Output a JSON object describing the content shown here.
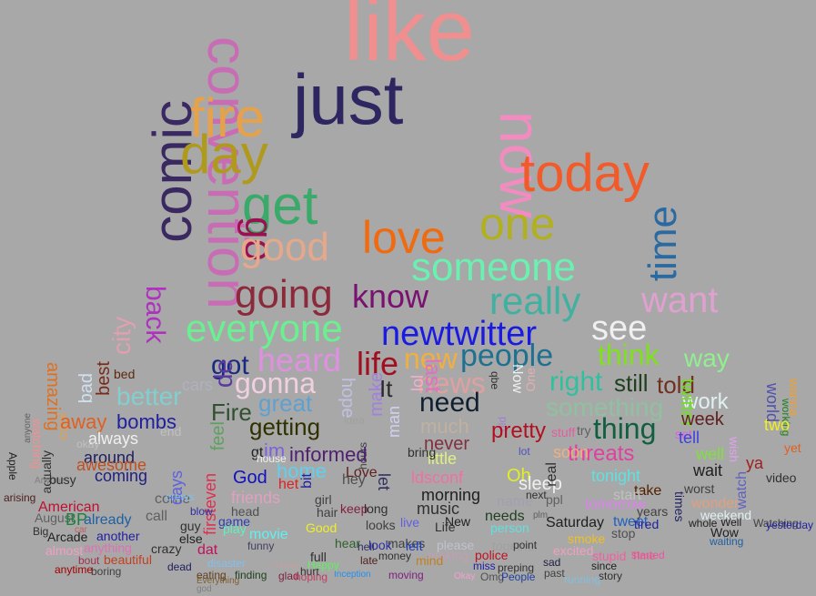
{
  "cloud": {
    "words": [
      {
        "text": "like",
        "color": "#f08f8f"
      },
      {
        "text": "just",
        "color": "#2e2660"
      },
      {
        "text": "convention",
        "color": "#c86db4"
      },
      {
        "text": "fire",
        "color": "#e6a24a"
      },
      {
        "text": "comic",
        "color": "#3a2860"
      },
      {
        "text": "day",
        "color": "#b09a1e"
      },
      {
        "text": "now",
        "color": "#f28cc0"
      },
      {
        "text": "today",
        "color": "#f25a2a"
      },
      {
        "text": "get",
        "color": "#3aaa6a"
      },
      {
        "text": "one",
        "color": "#b0b020"
      },
      {
        "text": "go",
        "color": "#9a1050"
      },
      {
        "text": "good",
        "color": "#e6a88a"
      },
      {
        "text": "love",
        "color": "#f06a10"
      },
      {
        "text": "time",
        "color": "#2a6aa0"
      },
      {
        "text": "someone",
        "color": "#6af0b0"
      },
      {
        "text": "back",
        "color": "#b030c0"
      },
      {
        "text": "going",
        "color": "#8a2a3a"
      },
      {
        "text": "know",
        "color": "#7a1070"
      },
      {
        "text": "really",
        "color": "#40b0a0"
      },
      {
        "text": "want",
        "color": "#e0a0d0"
      },
      {
        "text": "city",
        "color": "#e0a0b0"
      },
      {
        "text": "everyone",
        "color": "#6af090"
      },
      {
        "text": "newtwitter",
        "color": "#1a1ae0"
      },
      {
        "text": "see",
        "color": "#f0f0f0"
      },
      {
        "text": "got",
        "color": "#1a2a80"
      },
      {
        "text": "heard",
        "color": "#e090e0"
      },
      {
        "text": "life",
        "color": "#a01020"
      },
      {
        "text": "new",
        "color": "#f0b040"
      },
      {
        "text": "people",
        "color": "#207090"
      },
      {
        "text": "think",
        "color": "#80e020"
      },
      {
        "text": "way",
        "color": "#90f090"
      },
      {
        "text": "de",
        "color": "#5a3aa0"
      },
      {
        "text": "gonna",
        "color": "#f0d0e0"
      },
      {
        "text": "news",
        "color": "#e0a0a0"
      },
      {
        "text": "right",
        "color": "#30c0a0"
      },
      {
        "text": "still",
        "color": "#204020"
      },
      {
        "text": "told",
        "color": "#703020"
      },
      {
        "text": "amazing",
        "color": "#e07020"
      },
      {
        "text": "bad",
        "color": "#d0e0f0"
      },
      {
        "text": "best",
        "color": "#7a2a1a"
      },
      {
        "text": "bed",
        "color": "#5a2a10"
      },
      {
        "text": "boy",
        "color": "#c0a0a0"
      },
      {
        "text": "cars",
        "color": "#b0b0c0"
      },
      {
        "text": "better",
        "color": "#80d0d0"
      },
      {
        "text": "great",
        "color": "#60a0d0"
      },
      {
        "text": "hope",
        "color": "#c0c0e0"
      },
      {
        "text": "make",
        "color": "#a080e0"
      },
      {
        "text": "It",
        "color": "#2a2a2a"
      },
      {
        "text": "lol",
        "color": "#f0b0d0"
      },
      {
        "text": "last",
        "color": "#e070c0"
      },
      {
        "text": "need",
        "color": "#102030"
      },
      {
        "text": "qbe",
        "color": "#303030"
      },
      {
        "text": "Now",
        "color": "#f0f0f0"
      },
      {
        "text": "One",
        "color": "#e0b0b0"
      },
      {
        "text": "something",
        "color": "#90c0a0"
      },
      {
        "text": "work",
        "color": "#e0f0f0"
      },
      {
        "text": "world",
        "color": "#5050b0"
      },
      {
        "text": "wanna",
        "color": "#f0a030"
      },
      {
        "text": "working",
        "color": "#208020"
      },
      {
        "text": "cool",
        "color": "#e0a050"
      },
      {
        "text": "away",
        "color": "#e06020"
      },
      {
        "text": "bombs",
        "color": "#2020a0"
      },
      {
        "text": "Fire",
        "color": "#305030"
      },
      {
        "text": "feel",
        "color": "#60a060"
      },
      {
        "text": "firsteven",
        "color": "#e03050"
      },
      {
        "text": "getting",
        "color": "#303000"
      },
      {
        "text": "hours",
        "color": "#404040"
      },
      {
        "text": "man",
        "color": "#d0d0f0"
      },
      {
        "text": "much",
        "color": "#c0b0a0"
      },
      {
        "text": "old",
        "color": "#a080d0"
      },
      {
        "text": "pretty",
        "color": "#b01020"
      },
      {
        "text": "thing",
        "color": "#106040"
      },
      {
        "text": "twitter",
        "color": "#70e020"
      },
      {
        "text": "week",
        "color": "#602020"
      },
      {
        "text": "always",
        "color": "#f0f0f0"
      },
      {
        "text": "around",
        "color": "#202060"
      },
      {
        "text": "awesome",
        "color": "#c05020"
      },
      {
        "text": "coming",
        "color": "#202080"
      },
      {
        "text": "come",
        "color": "#606060"
      },
      {
        "text": "end",
        "color": "#c0c0c0"
      },
      {
        "text": "days",
        "color": "#6060e0"
      },
      {
        "text": "gt",
        "color": "#202020"
      },
      {
        "text": "im",
        "color": "#8060e0"
      },
      {
        "text": "informed",
        "color": "#502070"
      },
      {
        "text": "never",
        "color": "#803040"
      },
      {
        "text": "threats",
        "color": "#e040a0"
      },
      {
        "text": "well",
        "color": "#80e040"
      },
      {
        "text": "wait",
        "color": "#202020"
      },
      {
        "text": "watch",
        "color": "#6060c0"
      },
      {
        "text": "yet",
        "color": "#e06020"
      },
      {
        "text": "God",
        "color": "#1010c0"
      },
      {
        "text": "home",
        "color": "#60d0f0"
      },
      {
        "text": "het",
        "color": "#e02020"
      },
      {
        "text": "Love",
        "color": "#602020"
      },
      {
        "text": "ldsconf",
        "color": "#f070a0"
      },
      {
        "text": "Oh",
        "color": "#e0f020"
      },
      {
        "text": "sleep",
        "color": "#f0f0f0"
      },
      {
        "text": "tonight",
        "color": "#60e0e0"
      },
      {
        "text": "take",
        "color": "#502000"
      },
      {
        "text": "worst",
        "color": "#404040"
      },
      {
        "text": "friends",
        "color": "#e0a0c0"
      },
      {
        "text": "morning",
        "color": "#202020"
      },
      {
        "text": "name",
        "color": "#a0a0b0"
      },
      {
        "text": "ppl",
        "color": "#606060"
      },
      {
        "text": "start",
        "color": "#c0c0c0"
      },
      {
        "text": "wonder",
        "color": "#e0a080"
      },
      {
        "text": "American",
        "color": "#c01030"
      },
      {
        "text": "head",
        "color": "#505050"
      },
      {
        "text": "keep",
        "color": "#802040"
      },
      {
        "text": "music",
        "color": "#303030"
      },
      {
        "text": "needs",
        "color": "#204020"
      },
      {
        "text": "tomorrow",
        "color": "#e080f0"
      },
      {
        "text": "already",
        "color": "#2060a0"
      },
      {
        "text": "blow",
        "color": "#3030a0"
      },
      {
        "text": "game",
        "color": "#2a40b0"
      },
      {
        "text": "live",
        "color": "#6060e0"
      },
      {
        "text": "New",
        "color": "#202020"
      },
      {
        "text": "person",
        "color": "#60e0e0"
      },
      {
        "text": "Saturday",
        "color": "#202020"
      },
      {
        "text": "tweet",
        "color": "#2060c0"
      },
      {
        "text": "tired",
        "color": "#2020a0"
      },
      {
        "text": "whole",
        "color": "#202020"
      },
      {
        "text": "Well",
        "color": "#202020"
      },
      {
        "text": "weekend",
        "color": "#e0f0f0"
      },
      {
        "text": "Watching",
        "color": "#404040"
      },
      {
        "text": "yesterday",
        "color": "#2020a0"
      },
      {
        "text": "Arcade",
        "color": "#202020"
      },
      {
        "text": "another",
        "color": "#2020a0"
      },
      {
        "text": "crazy",
        "color": "#303030"
      },
      {
        "text": "funny",
        "color": "#404060"
      },
      {
        "text": "hurt",
        "color": "#303030"
      },
      {
        "text": "makes",
        "color": "#404040"
      },
      {
        "text": "police",
        "color": "#c01020"
      },
      {
        "text": "stop",
        "color": "#505050"
      },
      {
        "text": "Wow",
        "color": "#202020"
      },
      {
        "text": "waiting",
        "color": "#2060a0"
      },
      {
        "text": "money",
        "color": "#303030"
      },
      {
        "text": "late",
        "color": "#502020"
      },
      {
        "text": "stupid",
        "color": "#f060a0"
      },
      {
        "text": "Time",
        "color": "#e06080"
      },
      {
        "text": "sad",
        "color": "#202040"
      },
      {
        "text": "since",
        "color": "#202020"
      },
      {
        "text": "story",
        "color": "#303030"
      },
      {
        "text": "boring",
        "color": "#404040"
      },
      {
        "text": "anytime",
        "color": "#a00000"
      },
      {
        "text": "dead",
        "color": "#202060"
      },
      {
        "text": "Everything",
        "color": "#806030"
      },
      {
        "text": "finding",
        "color": "#204020"
      },
      {
        "text": "glad",
        "color": "#802040"
      },
      {
        "text": "Inception",
        "color": "#2090f0"
      },
      {
        "text": "moving",
        "color": "#802080"
      },
      {
        "text": "Okay",
        "color": "#f0a0d0"
      },
      {
        "text": "Omg",
        "color": "#505050"
      },
      {
        "text": "People",
        "color": "#2040a0"
      },
      {
        "text": "running",
        "color": "#80c0e0"
      },
      {
        "text": "Apple",
        "color": "#202020"
      },
      {
        "text": "arising",
        "color": "#502020"
      },
      {
        "text": "August",
        "color": "#606060"
      },
      {
        "text": "BP",
        "color": "#208040"
      },
      {
        "text": "Big",
        "color": "#303030"
      },
      {
        "text": "almost",
        "color": "#f0a0c0"
      },
      {
        "text": "bout",
        "color": "#a03050"
      },
      {
        "text": "beautiful",
        "color": "#c04020"
      },
      {
        "text": "anything",
        "color": "#e070b0"
      },
      {
        "text": "eating",
        "color": "#604020"
      },
      {
        "text": "preping",
        "color": "#303030"
      },
      {
        "text": "past",
        "color": "#404040"
      },
      {
        "text": "Happy",
        "color": "#60f060"
      },
      {
        "text": "hoping",
        "color": "#c04060"
      },
      {
        "text": "excited",
        "color": "#f0a0c0"
      },
      {
        "text": "smoke",
        "color": "#f0c020"
      },
      {
        "text": "started",
        "color": "#f050a0"
      },
      {
        "text": "together",
        "color": "#a0a0a0"
      },
      {
        "text": "please",
        "color": "#c0c0d0"
      },
      {
        "text": "making",
        "color": "#c0a0b0"
      },
      {
        "text": "mind",
        "color": "#c08020"
      },
      {
        "text": "miss",
        "color": "#2020a0"
      },
      {
        "text": "point",
        "color": "#303030"
      },
      {
        "text": "play",
        "color": "#60f0c0"
      },
      {
        "text": "guy",
        "color": "#303030"
      },
      {
        "text": "else",
        "color": "#202020"
      },
      {
        "text": "dat",
        "color": "#c01060"
      },
      {
        "text": "disaster",
        "color": "#80c0f0"
      },
      {
        "text": "full",
        "color": "#303030"
      },
      {
        "text": "hear",
        "color": "#306030"
      },
      {
        "text": "hell",
        "color": "#303060"
      },
      {
        "text": "looks",
        "color": "#404040"
      },
      {
        "text": "look",
        "color": "#3030a0"
      },
      {
        "text": "left",
        "color": "#2040c0"
      },
      {
        "text": "Life",
        "color": "#303030"
      },
      {
        "text": "movie",
        "color": "#60f0f0"
      },
      {
        "text": "Good",
        "color": "#f0f020"
      },
      {
        "text": "hair",
        "color": "#404040"
      },
      {
        "text": "girl",
        "color": "#404040"
      },
      {
        "text": "idea",
        "color": "#a0a0a0"
      },
      {
        "text": "hey",
        "color": "#505050"
      },
      {
        "text": "long",
        "color": "#303030"
      },
      {
        "text": "let",
        "color": "#303060"
      },
      {
        "text": "little",
        "color": "#e0f080"
      },
      {
        "text": "next",
        "color": "#303030"
      },
      {
        "text": "real",
        "color": "#303030"
      },
      {
        "text": "soon",
        "color": "#f0b080"
      },
      {
        "text": "stuff",
        "color": "#e060a0"
      },
      {
        "text": "try",
        "color": "#606060"
      },
      {
        "text": "set",
        "color": "#e060e0"
      },
      {
        "text": "two",
        "color": "#f0f020"
      },
      {
        "text": "ya",
        "color": "#a02020"
      },
      {
        "text": "wish",
        "color": "#e0a0f0"
      },
      {
        "text": "video",
        "color": "#303030"
      },
      {
        "text": "years",
        "color": "#404040"
      },
      {
        "text": "times",
        "color": "#202060"
      },
      {
        "text": "tell",
        "color": "#4040e0"
      },
      {
        "text": "watching",
        "color": "#f09090"
      },
      {
        "text": "actually",
        "color": "#303030"
      },
      {
        "text": "anyone",
        "color": "#606060"
      },
      {
        "text": "Anyone",
        "color": "#808080"
      },
      {
        "text": "busy",
        "color": "#303030"
      },
      {
        "text": "call",
        "color": "#606060"
      },
      {
        "text": "crews",
        "color": "#80c0f0"
      },
      {
        "text": "car",
        "color": "#c06060"
      },
      {
        "text": "bring",
        "color": "#303030"
      },
      {
        "text": "lot",
        "color": "#5050c0"
      },
      {
        "text": "okay",
        "color": "#c0c0c0"
      },
      {
        "text": "bit",
        "color": "#2020a0"
      },
      {
        "text": "house",
        "color": "#f0f0f0"
      },
      {
        "text": "plm",
        "color": "#606060"
      },
      {
        "text": "sunday",
        "color": "#c0a0a0"
      },
      {
        "text": "god",
        "color": "#808080"
      },
      {
        "text": "god",
        "color": "#a0a0a0"
      }
    ]
  }
}
